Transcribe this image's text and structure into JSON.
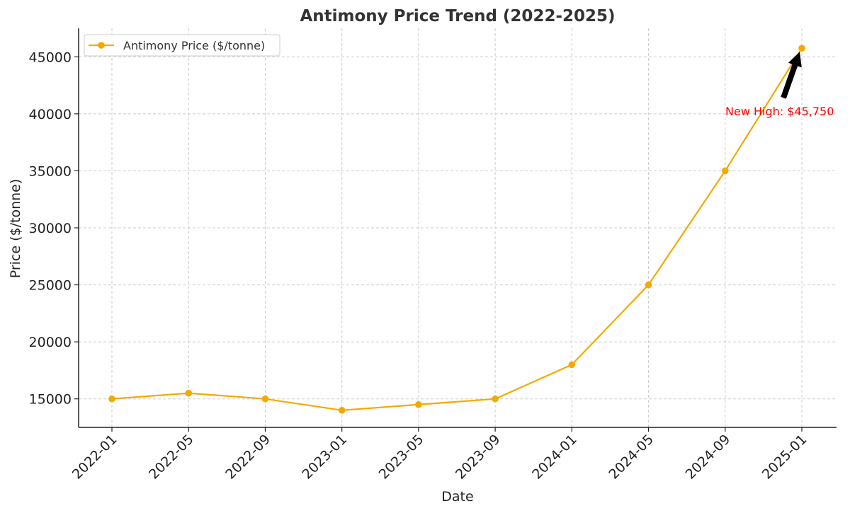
{
  "chart_data": {
    "type": "line",
    "title": "Antimony Price Trend (2022-2025)",
    "xlabel": "Date",
    "ylabel": "Price ($/tonne)",
    "categories": [
      "2022-01",
      "2022-05",
      "2022-09",
      "2023-01",
      "2023-05",
      "2023-09",
      "2024-01",
      "2024-05",
      "2024-09",
      "2025-01"
    ],
    "series": [
      {
        "name": "Antimony Price ($/tonne)",
        "color": "#F5A800",
        "values": [
          15000,
          15500,
          15000,
          14000,
          14500,
          15000,
          18000,
          25000,
          35000,
          45750
        ]
      }
    ],
    "ylim": [
      12500,
      47500
    ],
    "yticks": [
      15000,
      20000,
      25000,
      30000,
      35000,
      40000,
      45000
    ],
    "grid": true,
    "legend_position": "top-left",
    "annotation": {
      "text": "New High: $45,750",
      "target_category": "2025-01",
      "target_value": 45750,
      "text_value": 40100,
      "color": "#FF0000",
      "arrow_color": "#000000"
    }
  }
}
